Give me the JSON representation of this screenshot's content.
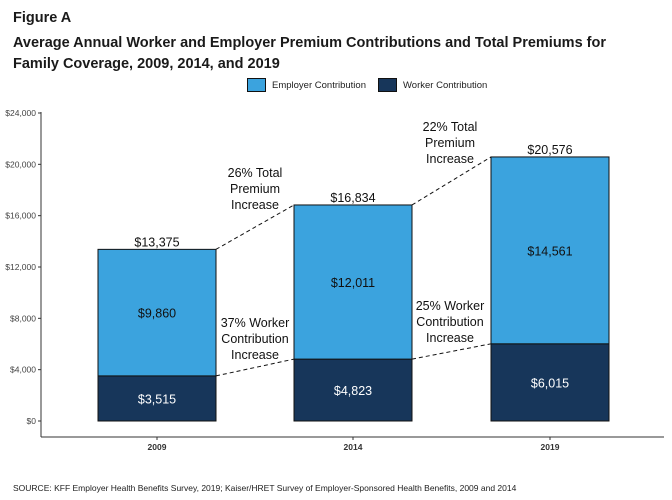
{
  "figure_label": "Figure A",
  "title": "Average Annual Worker and Employer Premium Contributions and Total Premiums for Family Coverage, 2009, 2014, and 2019",
  "source": "SOURCE: KFF Employer Health Benefits Survey, 2019; Kaiser/HRET Survey of Employer-Sponsored Health Benefits, 2009 and 2014",
  "colors": {
    "employer": "#3ba3de",
    "worker": "#17365a",
    "outline": "#111111"
  },
  "chart_data": {
    "type": "bar",
    "stacked": true,
    "categories": [
      "2009",
      "2014",
      "2019"
    ],
    "series": [
      {
        "name": "Worker Contribution",
        "values": [
          3515,
          4823,
          6015
        ],
        "labels": [
          "$3,515",
          "$4,823",
          "$6,015"
        ]
      },
      {
        "name": "Employer Contribution",
        "values": [
          9860,
          12011,
          14561
        ],
        "labels": [
          "$9,860",
          "$12,011",
          "$14,561"
        ]
      }
    ],
    "legend": [
      "Employer Contribution",
      "Worker Contribution"
    ],
    "legend_position": "top",
    "totals": [
      13375,
      16834,
      20576
    ],
    "total_labels": [
      "$13,375",
      "$16,834",
      "$20,576"
    ],
    "ylim": [
      0,
      24000
    ],
    "yticks": [
      0,
      4000,
      8000,
      12000,
      16000,
      20000,
      24000
    ],
    "ytick_labels": [
      "$0",
      "$4,000",
      "$8,000",
      "$12,000",
      "$16,000",
      "$20,000",
      "$24,000"
    ],
    "grid": false,
    "annotations": [
      {
        "text": [
          "26% Total",
          "Premium",
          "Increase"
        ]
      },
      {
        "text": [
          "22% Total",
          "Premium",
          "Increase"
        ]
      },
      {
        "text": [
          "37% Worker",
          "Contribution",
          "Increase"
        ]
      },
      {
        "text": [
          "25% Worker",
          "Contribution",
          "Increase"
        ]
      }
    ]
  }
}
